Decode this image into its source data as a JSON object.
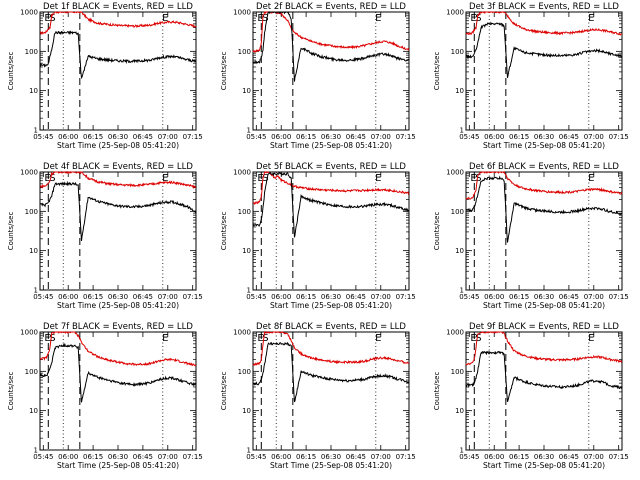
{
  "figure": {
    "xlabel": "Start Time (25-Sep-08 05:41:20)",
    "ylabel": "Counts/sec"
  },
  "chart_data": {
    "type": "line",
    "yscale": "log",
    "ylim": [
      1,
      1000
    ],
    "ytick_labels": [
      "1",
      "10",
      "100",
      "1000"
    ],
    "xtick_labels": [
      "05:45",
      "06:00",
      "06:15",
      "06:30",
      "06:45",
      "07:00",
      "07:15"
    ],
    "xlim_minutes": [
      343,
      437
    ],
    "grid": false,
    "legend": "none",
    "marker_labels": [
      "E",
      "S",
      "E"
    ],
    "colors": {
      "events": "#000000",
      "lld": "#dd0000"
    },
    "panels": [
      {
        "title": "Det 1f BLACK = Events, RED = LLD",
        "events": {
          "x": [
            343,
            346,
            347,
            348,
            349,
            350,
            352,
            356,
            360,
            364,
            366,
            368,
            372,
            378,
            385,
            392,
            400,
            405,
            410,
            414,
            418,
            422,
            425,
            428,
            430,
            432,
            434,
            437
          ],
          "y": [
            45,
            44,
            45,
            47,
            75,
            110,
            300,
            300,
            300,
            300,
            280,
            20,
            75,
            65,
            60,
            57,
            56,
            58,
            60,
            68,
            72,
            74,
            72,
            67,
            63,
            62,
            58,
            55
          ]
        },
        "lld": {
          "x": [
            343,
            346,
            347,
            348,
            349,
            350,
            352,
            356,
            360,
            364,
            366,
            368,
            372,
            378,
            385,
            392,
            400,
            405,
            410,
            414,
            418,
            422,
            425,
            428,
            430,
            432,
            434,
            437
          ],
          "y": [
            290,
            300,
            320,
            380,
            400,
            800,
            1000,
            1000,
            1000,
            1000,
            1000,
            1000,
            650,
            520,
            480,
            450,
            440,
            450,
            470,
            520,
            540,
            560,
            550,
            520,
            500,
            480,
            460,
            430
          ]
        }
      },
      {
        "title": "Det 2f BLACK = Events, RED = LLD",
        "events": {
          "x": [
            343,
            346,
            347,
            348,
            349,
            350,
            352,
            356,
            360,
            364,
            366,
            368,
            372,
            378,
            385,
            392,
            400,
            405,
            410,
            414,
            418,
            422,
            425,
            428,
            430,
            432,
            434,
            437
          ],
          "y": [
            55,
            52,
            55,
            70,
            110,
            300,
            1000,
            1000,
            1000,
            1000,
            650,
            18,
            125,
            90,
            72,
            62,
            60,
            62,
            66,
            76,
            82,
            86,
            80,
            72,
            66,
            64,
            62,
            58
          ]
        },
        "lld": {
          "x": [
            343,
            346,
            347,
            348,
            349,
            350,
            352,
            356,
            360,
            364,
            366,
            368,
            372,
            378,
            385,
            392,
            400,
            405,
            410,
            414,
            418,
            422,
            425,
            428,
            430,
            432,
            434,
            437
          ],
          "y": [
            100,
            105,
            110,
            160,
            800,
            1000,
            1000,
            1000,
            900,
            600,
            380,
            300,
            230,
            180,
            150,
            135,
            125,
            130,
            140,
            155,
            170,
            180,
            170,
            155,
            140,
            130,
            120,
            110
          ]
        }
      },
      {
        "title": "Det 3f BLACK = Events, RED = LLD",
        "events": {
          "x": [
            343,
            346,
            347,
            348,
            349,
            350,
            352,
            356,
            360,
            364,
            366,
            368,
            372,
            378,
            385,
            392,
            400,
            405,
            410,
            414,
            418,
            422,
            425,
            428,
            430,
            432,
            434,
            437
          ],
          "y": [
            75,
            72,
            75,
            85,
            110,
            150,
            400,
            500,
            500,
            500,
            450,
            22,
            120,
            95,
            85,
            80,
            78,
            80,
            84,
            95,
            100,
            104,
            100,
            92,
            86,
            84,
            80,
            75
          ]
        },
        "lld": {
          "x": [
            343,
            346,
            347,
            348,
            349,
            350,
            352,
            356,
            360,
            364,
            366,
            368,
            372,
            378,
            385,
            392,
            400,
            405,
            410,
            414,
            418,
            422,
            425,
            428,
            430,
            432,
            434,
            437
          ],
          "y": [
            280,
            285,
            300,
            350,
            400,
            800,
            1000,
            1000,
            1000,
            1000,
            1000,
            800,
            500,
            370,
            320,
            300,
            290,
            295,
            305,
            330,
            345,
            355,
            345,
            325,
            310,
            300,
            290,
            270
          ]
        }
      },
      {
        "title": "Det 4f BLACK = Events, RED = LLD",
        "events": {
          "x": [
            343,
            346,
            347,
            348,
            349,
            350,
            352,
            356,
            360,
            364,
            366,
            368,
            372,
            378,
            385,
            392,
            400,
            405,
            410,
            414,
            418,
            422,
            425,
            428,
            430,
            432,
            434,
            437
          ],
          "y": [
            150,
            145,
            150,
            165,
            200,
            240,
            500,
            500,
            500,
            500,
            450,
            18,
            230,
            180,
            150,
            135,
            130,
            135,
            145,
            160,
            170,
            175,
            165,
            150,
            140,
            130,
            115,
            95
          ]
        },
        "lld": {
          "x": [
            343,
            346,
            347,
            348,
            349,
            350,
            352,
            356,
            360,
            364,
            366,
            368,
            372,
            378,
            385,
            392,
            400,
            405,
            410,
            414,
            418,
            422,
            425,
            428,
            430,
            432,
            434,
            437
          ],
          "y": [
            430,
            440,
            460,
            520,
            600,
            900,
            1000,
            1000,
            1000,
            1000,
            1000,
            1000,
            700,
            560,
            500,
            470,
            460,
            470,
            490,
            520,
            540,
            550,
            530,
            500,
            480,
            460,
            440,
            410
          ]
        }
      },
      {
        "title": "Det 5f BLACK = Events, RED = LLD",
        "events": {
          "x": [
            343,
            346,
            347,
            348,
            349,
            350,
            352,
            356,
            360,
            364,
            366,
            368,
            372,
            378,
            385,
            392,
            400,
            405,
            410,
            414,
            418,
            422,
            425,
            428,
            430,
            432,
            434,
            437
          ],
          "y": [
            45,
            44,
            46,
            60,
            120,
            300,
            900,
            900,
            900,
            900,
            700,
            22,
            240,
            190,
            160,
            140,
            130,
            130,
            135,
            145,
            150,
            152,
            145,
            135,
            128,
            122,
            115,
            105
          ]
        },
        "lld": {
          "x": [
            343,
            346,
            347,
            348,
            349,
            350,
            352,
            354,
            356,
            358,
            360,
            364,
            366,
            368,
            372,
            378,
            385,
            392,
            400,
            405,
            410,
            414,
            418,
            422,
            425,
            428,
            430,
            432,
            434,
            437
          ],
          "y": [
            160,
            165,
            175,
            240,
            700,
            1000,
            1000,
            900,
            700,
            800,
            620,
            520,
            470,
            430,
            400,
            370,
            350,
            340,
            330,
            335,
            340,
            350,
            355,
            355,
            345,
            330,
            320,
            310,
            300,
            290
          ]
        }
      },
      {
        "title": "Det 6f BLACK = Events, RED = LLD",
        "events": {
          "x": [
            343,
            346,
            347,
            348,
            349,
            350,
            352,
            356,
            360,
            364,
            366,
            368,
            372,
            378,
            385,
            392,
            400,
            405,
            410,
            414,
            418,
            422,
            425,
            428,
            430,
            432,
            434,
            437
          ],
          "y": [
            110,
            105,
            110,
            130,
            180,
            260,
            600,
            700,
            700,
            700,
            600,
            16,
            160,
            125,
            108,
            100,
            95,
            98,
            102,
            112,
            118,
            120,
            114,
            104,
            98,
            94,
            90,
            85
          ]
        },
        "lld": {
          "x": [
            343,
            346,
            347,
            348,
            349,
            350,
            352,
            356,
            360,
            364,
            366,
            368,
            372,
            378,
            385,
            392,
            400,
            405,
            410,
            414,
            418,
            422,
            425,
            428,
            430,
            432,
            434,
            437
          ],
          "y": [
            210,
            215,
            225,
            270,
            350,
            800,
            1000,
            1000,
            1000,
            1000,
            1000,
            700,
            480,
            380,
            340,
            315,
            305,
            310,
            320,
            345,
            360,
            365,
            350,
            330,
            315,
            305,
            295,
            285
          ]
        }
      },
      {
        "title": "Det 7f BLACK = Events, RED = LLD",
        "events": {
          "x": [
            343,
            346,
            347,
            348,
            349,
            350,
            352,
            356,
            360,
            364,
            366,
            368,
            372,
            378,
            385,
            392,
            400,
            405,
            410,
            414,
            418,
            422,
            425,
            428,
            430,
            432,
            434,
            437
          ],
          "y": [
            80,
            78,
            80,
            90,
            120,
            160,
            400,
            450,
            450,
            450,
            400,
            16,
            90,
            70,
            58,
            50,
            46,
            48,
            52,
            60,
            66,
            68,
            64,
            58,
            54,
            52,
            48,
            44
          ]
        },
        "lld": {
          "x": [
            343,
            346,
            347,
            348,
            349,
            350,
            352,
            356,
            360,
            364,
            366,
            368,
            372,
            378,
            385,
            392,
            400,
            405,
            410,
            414,
            418,
            422,
            425,
            428,
            430,
            432,
            434,
            437
          ],
          "y": [
            210,
            215,
            230,
            280,
            400,
            900,
            1000,
            1000,
            1000,
            1000,
            800,
            550,
            330,
            230,
            190,
            165,
            150,
            152,
            160,
            180,
            195,
            200,
            190,
            175,
            165,
            158,
            150,
            140
          ]
        }
      },
      {
        "title": "Det 8f BLACK = Events, RED = LLD",
        "events": {
          "x": [
            343,
            346,
            347,
            348,
            349,
            350,
            352,
            356,
            360,
            364,
            366,
            368,
            372,
            378,
            385,
            392,
            400,
            405,
            410,
            414,
            418,
            422,
            425,
            428,
            430,
            432,
            434,
            437
          ],
          "y": [
            50,
            48,
            50,
            60,
            90,
            150,
            500,
            500,
            500,
            500,
            450,
            16,
            100,
            80,
            68,
            62,
            58,
            60,
            63,
            70,
            75,
            78,
            74,
            68,
            64,
            62,
            58,
            54
          ]
        },
        "lld": {
          "x": [
            343,
            346,
            347,
            348,
            349,
            350,
            352,
            356,
            360,
            364,
            366,
            368,
            372,
            378,
            385,
            392,
            400,
            405,
            410,
            414,
            418,
            422,
            425,
            428,
            430,
            432,
            434,
            437
          ],
          "y": [
            150,
            155,
            160,
            200,
            500,
            1000,
            1000,
            1000,
            1000,
            900,
            600,
            400,
            280,
            220,
            190,
            175,
            170,
            172,
            180,
            200,
            215,
            220,
            210,
            195,
            185,
            178,
            170,
            160
          ]
        }
      },
      {
        "title": "Det 9f BLACK = Events, RED = LLD",
        "events": {
          "x": [
            343,
            346,
            347,
            348,
            349,
            350,
            352,
            356,
            360,
            364,
            366,
            368,
            372,
            378,
            385,
            392,
            400,
            405,
            410,
            414,
            418,
            422,
            425,
            428,
            430,
            432,
            434,
            437
          ],
          "y": [
            45,
            44,
            45,
            50,
            70,
            100,
            300,
            300,
            300,
            300,
            280,
            16,
            70,
            55,
            46,
            42,
            40,
            41,
            44,
            50,
            56,
            58,
            54,
            48,
            44,
            42,
            40,
            38
          ]
        },
        "lld": {
          "x": [
            343,
            346,
            347,
            348,
            349,
            350,
            352,
            356,
            360,
            364,
            366,
            368,
            372,
            378,
            385,
            392,
            400,
            405,
            410,
            414,
            418,
            422,
            425,
            428,
            430,
            432,
            434,
            437
          ],
          "y": [
            150,
            155,
            165,
            210,
            400,
            900,
            1000,
            1000,
            1000,
            1000,
            900,
            600,
            330,
            250,
            215,
            200,
            195,
            198,
            205,
            220,
            230,
            235,
            225,
            210,
            200,
            195,
            188,
            180
          ]
        }
      }
    ]
  }
}
